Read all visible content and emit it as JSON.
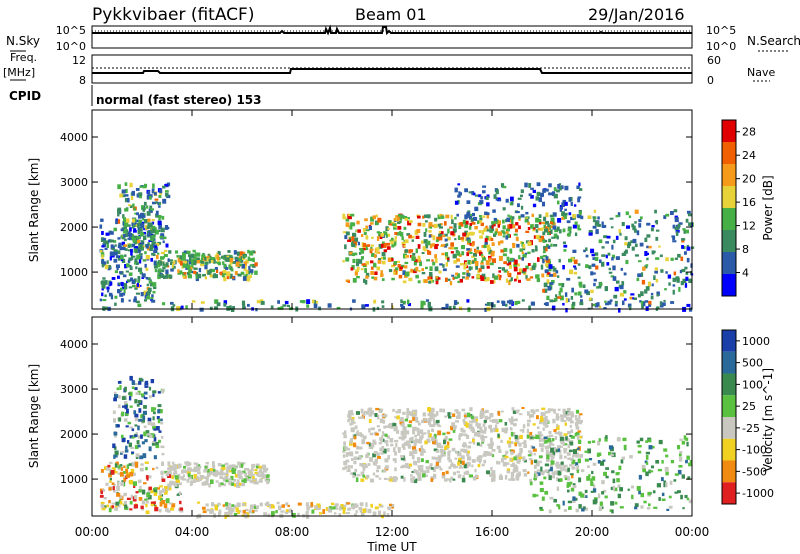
{
  "header": {
    "station": "Pykkvibaer (fitACF)",
    "beam": "Beam 01",
    "date": "29/Jan/2016"
  },
  "status_panel": {
    "nsky_label": "N.Sky",
    "nsearch_label": "N.Search",
    "noise_ticks": [
      "10^5",
      "10^0"
    ],
    "freq_label_1": "Freq.",
    "freq_label_2": "[MHz]",
    "freq_ticks": [
      "12",
      "8"
    ],
    "nave_label": "Nave",
    "nave_ticks": [
      "60",
      "0"
    ],
    "cpid_label": "CPID",
    "cpid_text": "normal (fast stereo) 153"
  },
  "axes": {
    "xlabel": "Time UT",
    "ylabel": "Slant Range [km]",
    "x_ticks": [
      "00:00",
      "04:00",
      "08:00",
      "12:00",
      "16:00",
      "20:00",
      "00:00"
    ],
    "y_ticks": [
      "1000",
      "2000",
      "3000",
      "4000"
    ]
  },
  "chart_data": [
    {
      "type": "heatmap",
      "name": "power",
      "xlabel": "Time UT",
      "ylabel": "Slant Range [km]",
      "xlim": [
        "00:00",
        "24:00"
      ],
      "ylim": [
        180,
        4600
      ],
      "colorbar_label": "Power [dB]",
      "colorbar_ticks": [
        "4",
        "8",
        "12",
        "16",
        "20",
        "24",
        "28"
      ],
      "colorbar_range": [
        0,
        30
      ],
      "colors": [
        "#0000ff",
        "#2a5aa8",
        "#3a8a60",
        "#46b046",
        "#e8d23a",
        "#f59a1a",
        "#f06000",
        "#e00000"
      ],
      "regions": [
        {
          "t": [
            0.3,
            6.0
          ],
          "r": [
            500,
            3200
          ],
          "level": 14
        },
        {
          "t": [
            10.0,
            18.5
          ],
          "r": [
            700,
            2900
          ],
          "level": 20
        },
        {
          "t": [
            18.5,
            24.0
          ],
          "r": [
            300,
            2800
          ],
          "level": 12
        }
      ]
    },
    {
      "type": "heatmap",
      "name": "velocity",
      "xlabel": "Time UT",
      "ylabel": "Slant Range [km]",
      "xlim": [
        "00:00",
        "24:00"
      ],
      "ylim": [
        180,
        4600
      ],
      "colorbar_label": "Velocity [m s^-1]",
      "colorbar_ticks": [
        "1000",
        "500",
        "100",
        "25",
        "-25",
        "-100",
        "-500",
        "-1000"
      ],
      "colors": [
        "#1a3fa8",
        "#2a6a9a",
        "#3a8a50",
        "#5ac040",
        "#c8c8c0",
        "#f0d020",
        "#f08a10",
        "#e02020"
      ]
    }
  ],
  "colors": {
    "frame": "#000000",
    "background": "#ffffff"
  }
}
